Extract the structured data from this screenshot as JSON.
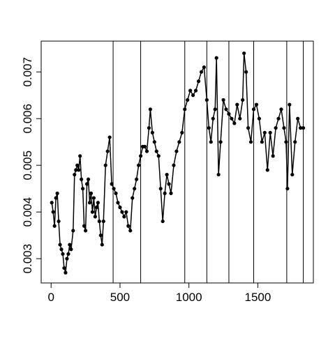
{
  "chart_data": {
    "type": "line",
    "color": "#000000",
    "x": [
      5,
      15,
      25,
      35,
      45,
      55,
      65,
      75,
      85,
      95,
      105,
      115,
      125,
      135,
      145,
      160,
      170,
      180,
      190,
      200,
      210,
      220,
      230,
      240,
      250,
      260,
      270,
      280,
      290,
      300,
      310,
      320,
      330,
      340,
      350,
      360,
      370,
      380,
      395,
      410,
      425,
      440,
      455,
      470,
      485,
      500,
      515,
      530,
      545,
      560,
      575,
      590,
      605,
      620,
      635,
      650,
      665,
      680,
      695,
      710,
      720,
      735,
      750,
      765,
      780,
      795,
      810,
      825,
      840,
      855,
      870,
      890,
      910,
      930,
      950,
      970,
      990,
      1010,
      1030,
      1050,
      1070,
      1090,
      1110,
      1130,
      1145,
      1160,
      1175,
      1190,
      1200,
      1215,
      1230,
      1250,
      1270,
      1290,
      1310,
      1330,
      1350,
      1370,
      1390,
      1400,
      1415,
      1430,
      1450,
      1470,
      1490,
      1510,
      1530,
      1550,
      1570,
      1590,
      1610,
      1630,
      1650,
      1670,
      1690,
      1705,
      1715,
      1730,
      1750,
      1770,
      1790,
      1810,
      1830
    ],
    "values": [
      0.0042,
      0.004,
      0.0037,
      0.0043,
      0.0044,
      0.0038,
      0.0033,
      0.0032,
      0.0031,
      0.0028,
      0.0027,
      0.003,
      0.0031,
      0.0033,
      0.0032,
      0.0036,
      0.0048,
      0.0049,
      0.005,
      0.0049,
      0.0052,
      0.0047,
      0.0045,
      0.0037,
      0.0036,
      0.0046,
      0.0047,
      0.0042,
      0.0044,
      0.004,
      0.0043,
      0.0039,
      0.0041,
      0.0042,
      0.0038,
      0.0035,
      0.0033,
      0.0038,
      0.005,
      0.0053,
      0.0056,
      0.0046,
      0.0045,
      0.0044,
      0.0042,
      0.0041,
      0.004,
      0.0039,
      0.004,
      0.0037,
      0.0036,
      0.0043,
      0.0045,
      0.0047,
      0.005,
      0.0052,
      0.0054,
      0.0054,
      0.0053,
      0.0058,
      0.0062,
      0.0057,
      0.0055,
      0.0053,
      0.0052,
      0.0045,
      0.0038,
      0.0044,
      0.0048,
      0.0046,
      0.0044,
      0.005,
      0.0053,
      0.0055,
      0.0057,
      0.0062,
      0.0064,
      0.0066,
      0.0065,
      0.0066,
      0.0068,
      0.007,
      0.0071,
      0.0064,
      0.0058,
      0.0055,
      0.006,
      0.0062,
      0.0073,
      0.0048,
      0.0055,
      0.0064,
      0.0062,
      0.0061,
      0.006,
      0.0059,
      0.0063,
      0.006,
      0.0064,
      0.0074,
      0.007,
      0.0058,
      0.0055,
      0.0062,
      0.0063,
      0.006,
      0.0055,
      0.0057,
      0.0049,
      0.0057,
      0.0052,
      0.0058,
      0.006,
      0.0062,
      0.0058,
      0.0055,
      0.0045,
      0.0063,
      0.0048,
      0.0055,
      0.006,
      0.0058,
      0.0058
    ],
    "vlines": [
      450,
      650,
      970,
      1130,
      1290,
      1470,
      1710,
      1830
    ],
    "xlim": [
      -72,
      1903
    ],
    "xticks": [
      0,
      500,
      1000,
      1500
    ],
    "ylim": [
      0.00248,
      0.00766
    ],
    "yticks": [
      0.003,
      0.004,
      0.005,
      0.006,
      0.007
    ]
  }
}
